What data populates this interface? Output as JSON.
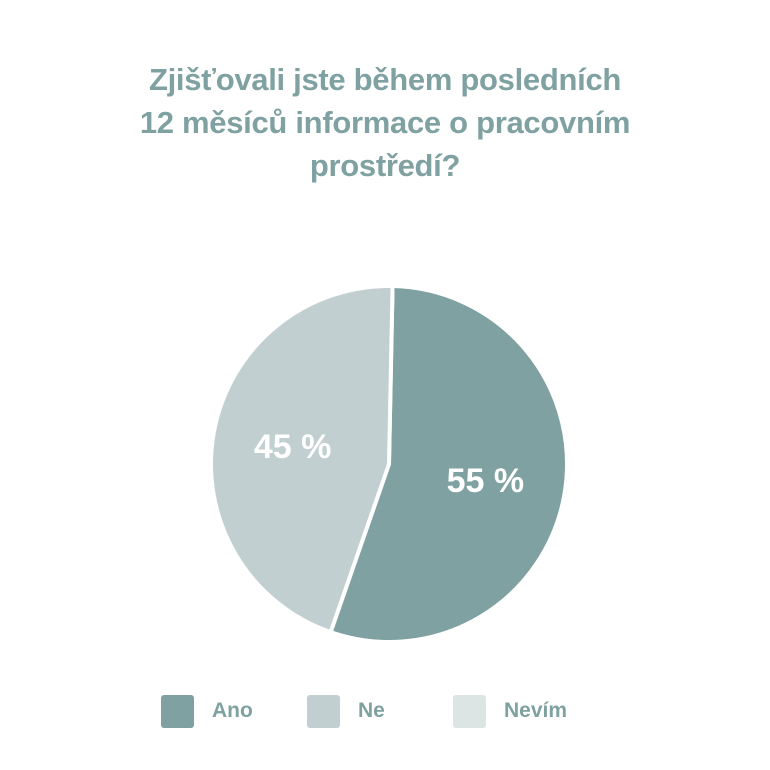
{
  "title_lines": [
    "Zjišťovali jste během posledních",
    "12 měsíců informace o pracovním",
    "prostředí?"
  ],
  "chart_data": {
    "type": "pie",
    "title": "Zjišťovali jste během posledních 12 měsíců informace o pracovním prostředí?",
    "categories": [
      "Ano",
      "Ne",
      "Nevím"
    ],
    "values": [
      55,
      45,
      0
    ],
    "value_labels": [
      "55 %",
      "45 %",
      ""
    ],
    "colors": [
      "#7fa1a1",
      "#c1cfd0",
      "#dde4e4"
    ],
    "legend_position": "bottom"
  }
}
